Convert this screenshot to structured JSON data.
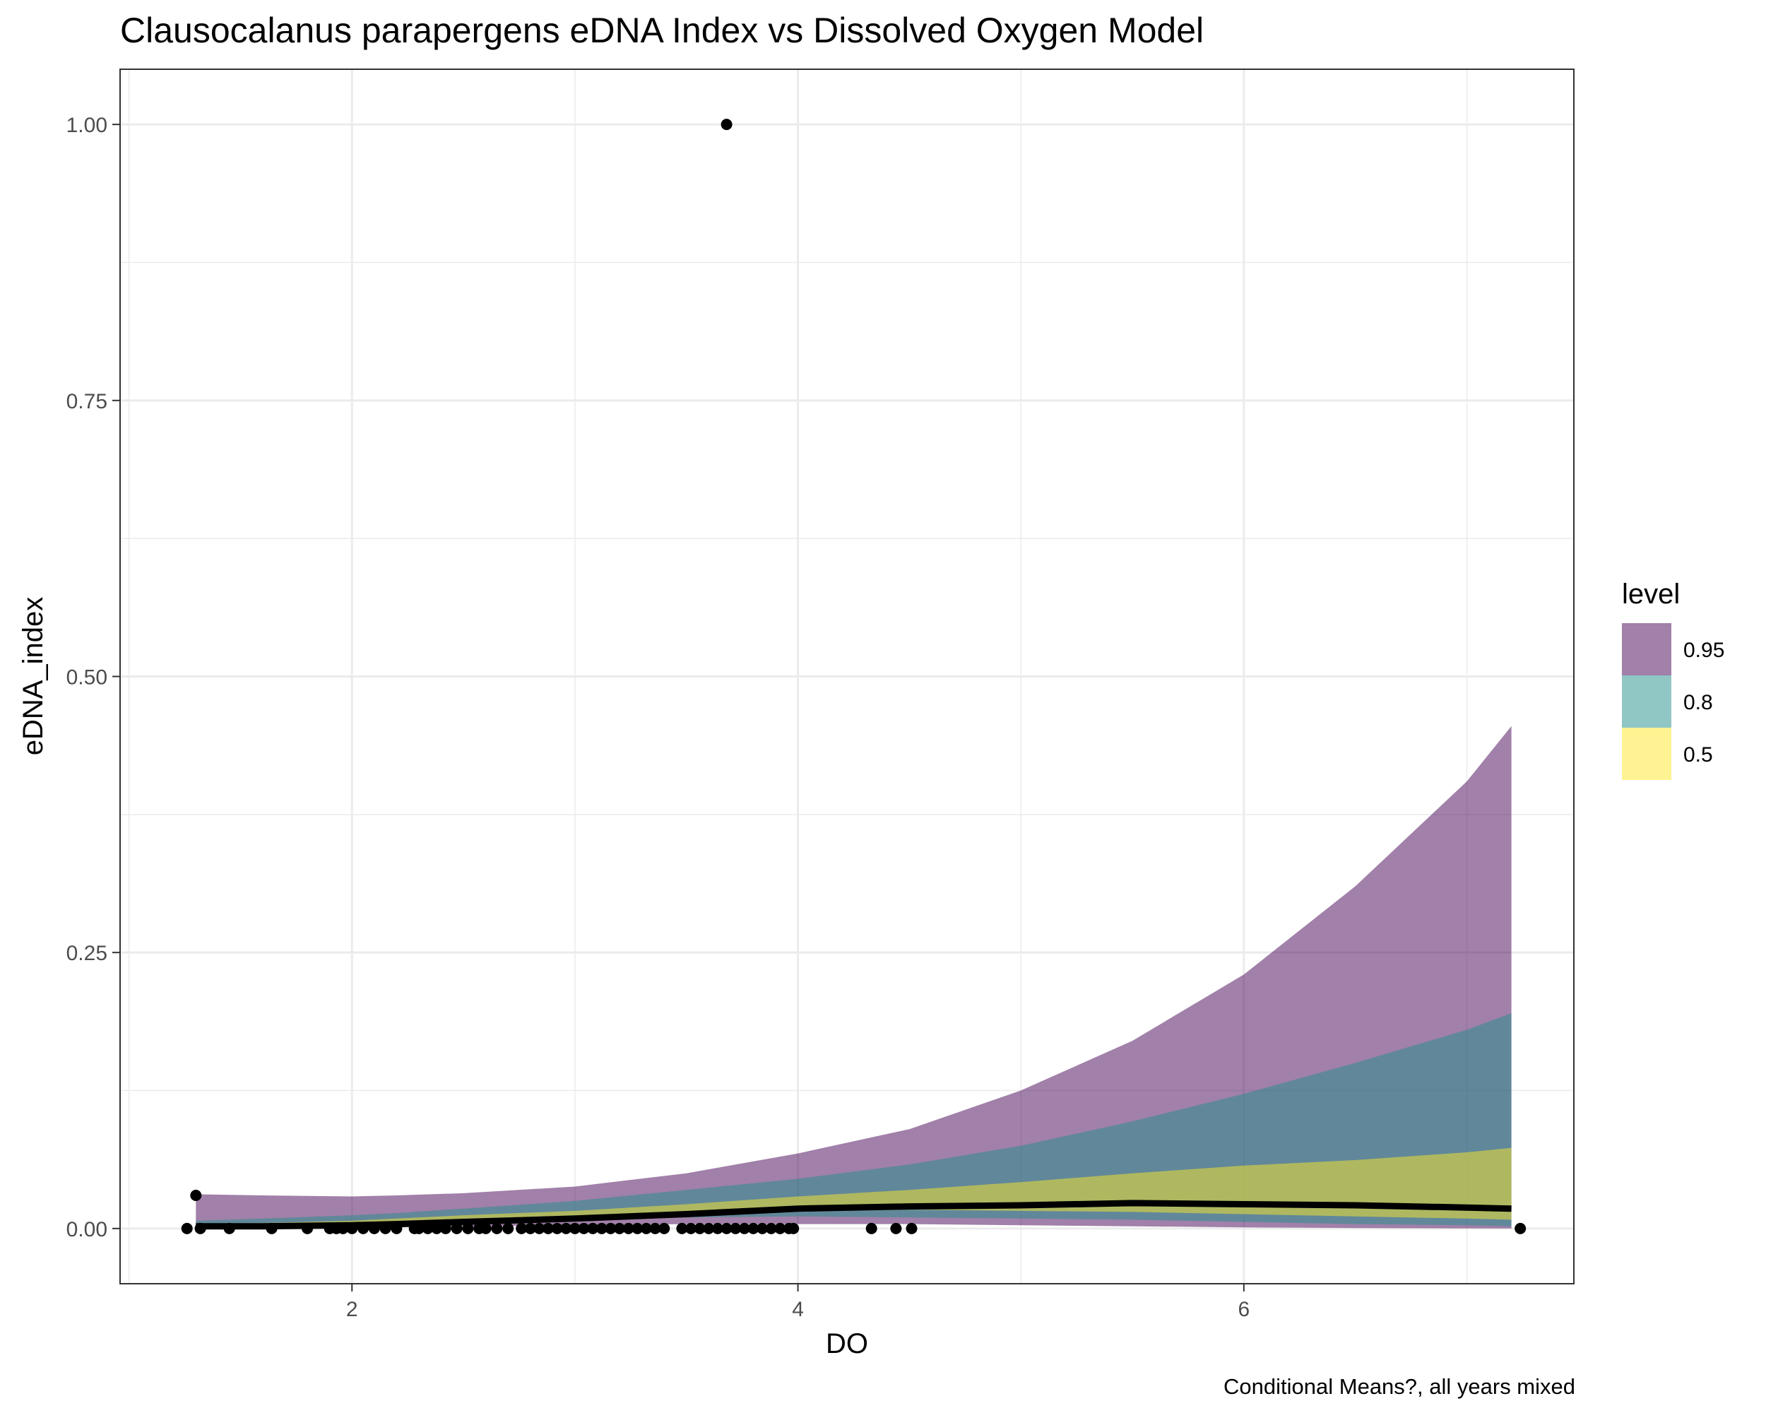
{
  "chart_data": {
    "type": "area",
    "title": "Clausocalanus parapergens eDNA Index vs Dissolved Oxygen Model",
    "caption": "Conditional Means?, all years mixed",
    "xlabel": "DO",
    "ylabel": "eDNA_index",
    "xlim": [
      0.96,
      7.48
    ],
    "ylim": [
      -0.05,
      1.05
    ],
    "x_ticks": [
      2,
      4,
      6
    ],
    "x_tick_labels": [
      "2",
      "4",
      "6"
    ],
    "x_minor_ticks": [
      1,
      3,
      5,
      7
    ],
    "y_ticks": [
      0,
      0.25,
      0.5,
      0.75,
      1.0
    ],
    "y_tick_labels": [
      "0.00",
      "0.25",
      "0.50",
      "0.75",
      "1.00"
    ],
    "y_minor_ticks": [
      0.125,
      0.375,
      0.625,
      0.875
    ],
    "grid": true,
    "legend": {
      "title": "level",
      "position": "right",
      "entries": [
        {
          "label": "0.95",
          "color": "#440154"
        },
        {
          "label": "0.8",
          "color": "#21908C"
        },
        {
          "label": "0.5",
          "color": "#FDE725"
        }
      ]
    },
    "ribbon_opacity": 0.5,
    "x": [
      1.3,
      1.6,
      2.0,
      2.2,
      2.5,
      3.0,
      3.5,
      4.0,
      4.5,
      5.0,
      5.5,
      6.0,
      6.5,
      7.0,
      7.2
    ],
    "series": [
      {
        "name": "0.95",
        "color": "#440154",
        "lower": [
          0.0,
          0.0,
          0.001,
          0.001,
          0.002,
          0.003,
          0.004,
          0.004,
          0.004,
          0.003,
          0.002,
          0.001,
          0.0005,
          0.0002,
          0.0001
        ],
        "upper": [
          0.031,
          0.03,
          0.029,
          0.03,
          0.032,
          0.038,
          0.05,
          0.068,
          0.09,
          0.125,
          0.17,
          0.23,
          0.31,
          0.405,
          0.455
        ]
      },
      {
        "name": "0.8",
        "color": "#21908C",
        "lower": [
          0.002,
          0.003,
          0.004,
          0.005,
          0.006,
          0.008,
          0.01,
          0.011,
          0.01,
          0.009,
          0.008,
          0.006,
          0.004,
          0.003,
          0.002
        ],
        "upper": [
          0.007,
          0.009,
          0.012,
          0.014,
          0.018,
          0.025,
          0.035,
          0.045,
          0.058,
          0.075,
          0.097,
          0.122,
          0.15,
          0.18,
          0.195
        ]
      },
      {
        "name": "0.5",
        "color": "#FDE725",
        "lower": [
          0.003,
          0.004,
          0.005,
          0.006,
          0.008,
          0.011,
          0.014,
          0.016,
          0.017,
          0.016,
          0.015,
          0.013,
          0.011,
          0.009,
          0.008
        ],
        "upper": [
          0.004,
          0.005,
          0.007,
          0.009,
          0.012,
          0.016,
          0.022,
          0.029,
          0.035,
          0.042,
          0.05,
          0.057,
          0.062,
          0.069,
          0.073
        ]
      }
    ],
    "mean_line": {
      "color": "#000000",
      "y": [
        0.002,
        0.002,
        0.003,
        0.004,
        0.006,
        0.009,
        0.013,
        0.018,
        0.02,
        0.021,
        0.023,
        0.022,
        0.021,
        0.019,
        0.018
      ]
    },
    "points": {
      "color": "#000000",
      "x": [
        1.26,
        1.3,
        1.32,
        1.45,
        1.64,
        1.8,
        1.9,
        1.93,
        1.96,
        2.0,
        2.05,
        2.1,
        2.15,
        2.2,
        2.28,
        2.3,
        2.34,
        2.38,
        2.42,
        2.47,
        2.52,
        2.57,
        2.6,
        2.65,
        2.7,
        2.76,
        2.8,
        2.84,
        2.88,
        2.92,
        2.96,
        3.0,
        3.04,
        3.08,
        3.12,
        3.16,
        3.2,
        3.24,
        3.28,
        3.32,
        3.36,
        3.4,
        3.48,
        3.52,
        3.56,
        3.6,
        3.64,
        3.68,
        3.72,
        3.76,
        3.8,
        3.84,
        3.88,
        3.92,
        3.96,
        3.98,
        4.33,
        4.44,
        4.51,
        3.68,
        7.24
      ],
      "y": [
        0,
        0.03,
        0,
        0,
        0,
        0,
        0,
        0,
        0,
        0,
        0,
        0,
        0,
        0,
        0,
        0,
        0,
        0,
        0,
        0,
        0,
        0,
        0,
        0,
        0,
        0,
        0,
        0,
        0,
        0,
        0,
        0,
        0,
        0,
        0,
        0,
        0,
        0,
        0,
        0,
        0,
        0,
        0,
        0,
        0,
        0,
        0,
        0,
        0,
        0,
        0,
        0,
        0,
        0,
        0,
        0,
        0,
        0,
        0,
        1.0,
        0
      ]
    }
  }
}
